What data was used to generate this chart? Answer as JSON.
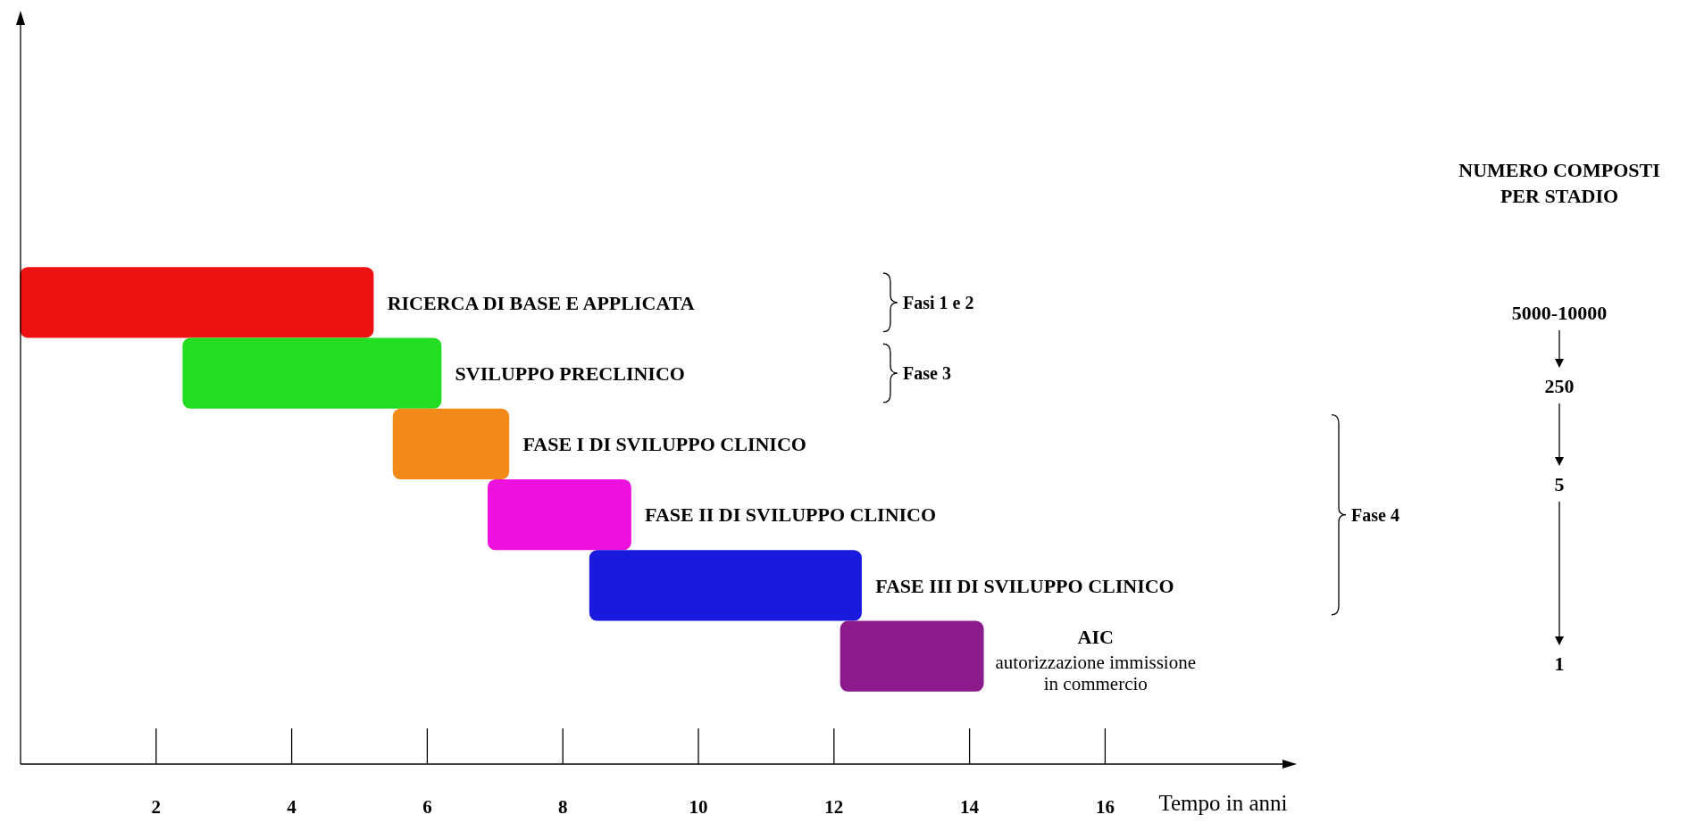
{
  "chart_data": [
    {
      "type": "bar",
      "orientation": "horizontal",
      "xlabel": "Tempo in anni",
      "categories": [
        "RICERCA DI BASE E APPLICATA",
        "SVILUPPO PRECLINICO",
        "FASE I DI SVILUPPO CLINICO",
        "FASE II DI SVILUPPO CLINICO",
        "FASE III DI SVILUPPO CLINICO",
        "AIC"
      ],
      "base": [
        0,
        2.4,
        5.5,
        6.9,
        8.4,
        12.1
      ],
      "values": [
        5.2,
        3.8,
        1.7,
        2.1,
        4.0,
        2.1
      ],
      "colors": [
        "#ee1111",
        "#22dd22",
        "#f28a1a",
        "#ee11dd",
        "#1a1add",
        "#8b1a8b"
      ],
      "xlim": [
        0,
        18.8
      ],
      "xticks": [
        2,
        4,
        6,
        8,
        10,
        12,
        14,
        16
      ],
      "tick_labels": "x",
      "annotations": [
        "Fasi 1 e 2",
        "Fase 3",
        "Fase 4",
        {
          "text": "autorizzazione immissione in commercio",
          "x": 14.2,
          "y": "AIC"
        }
      ]
    },
    {
      "type": "other",
      "title": "NUMERO COMPOSTI PER STADIO",
      "annotations": [
        "5000-10000",
        "250",
        "5",
        "1"
      ]
    }
  ]
}
